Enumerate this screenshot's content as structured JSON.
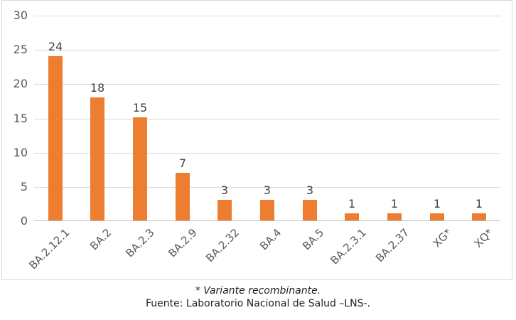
{
  "chart_data": {
    "type": "bar",
    "title": "",
    "xlabel": "",
    "ylabel": "",
    "categories": [
      "BA.2.12.1",
      "BA.2",
      "BA.2.3",
      "BA.2.9",
      "BA.2.32",
      "BA.4",
      "BA.5",
      "BA.2.3.1",
      "BA.2.37",
      "XG*",
      "XQ*"
    ],
    "values": [
      24,
      18,
      15,
      7,
      3,
      3,
      3,
      1,
      1,
      1,
      1
    ],
    "ylim": [
      0,
      30
    ],
    "yticks": [
      0,
      5,
      10,
      15,
      20,
      25,
      30
    ],
    "grid": true,
    "legend": false,
    "data_labels": true,
    "bar_color": "#ED7D31"
  },
  "colors": {
    "bar": "#ED7D31",
    "gridline": "#D9D9D9",
    "axis_line": "#BFBFBF",
    "tick_text": "#595959",
    "value_text": "#404040",
    "border": "#D9D9D9"
  },
  "footer": {
    "footnote": "* Variante recombinante.",
    "source": "Fuente: Laboratorio Nacional de Salud –LNS-."
  }
}
